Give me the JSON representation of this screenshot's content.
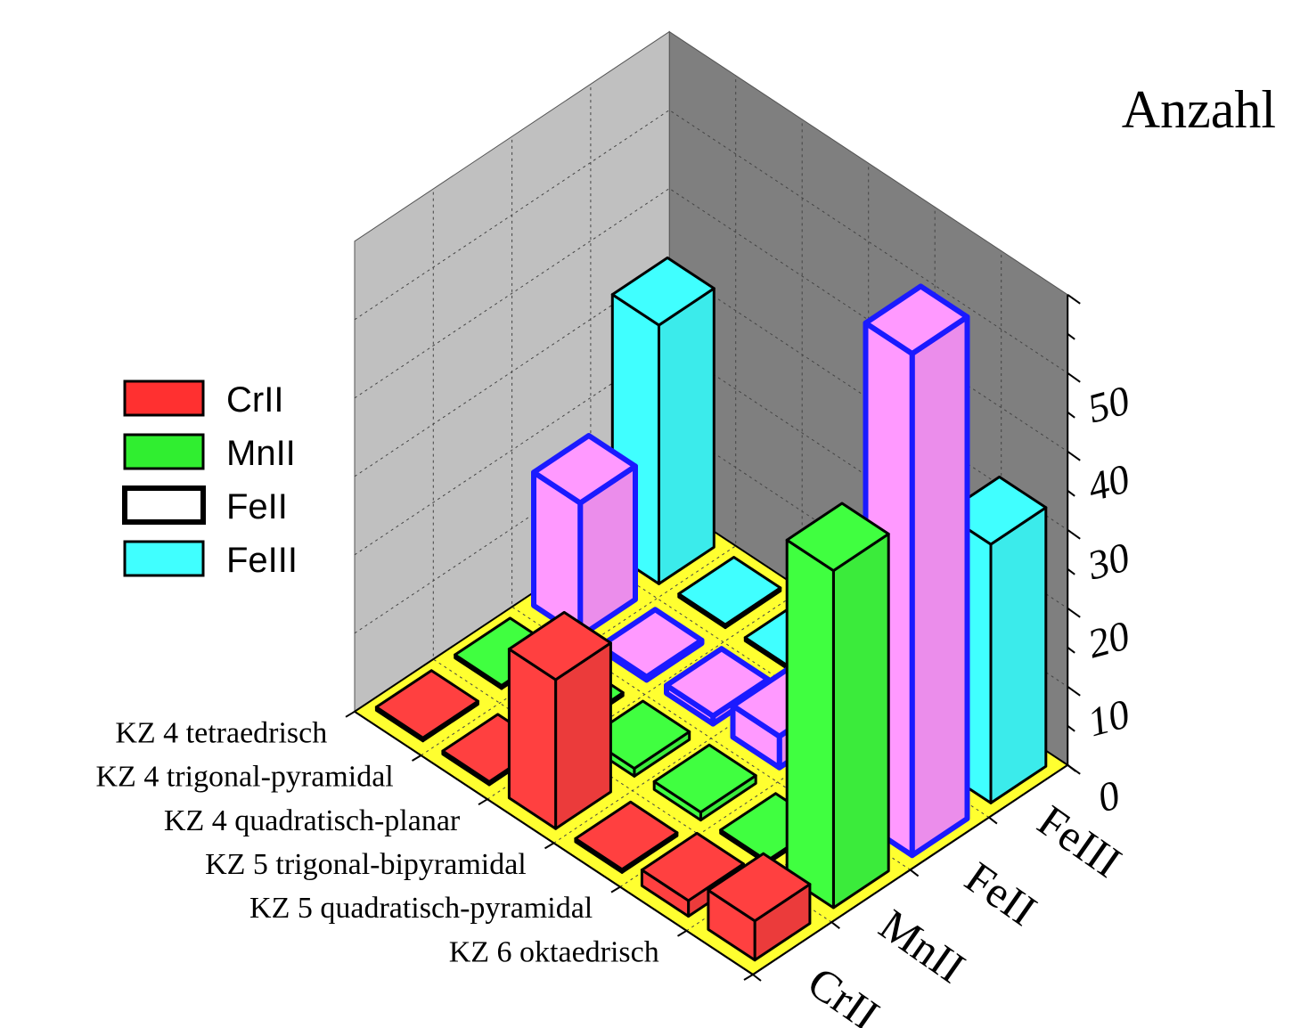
{
  "chart_data": {
    "type": "bar",
    "subtype": "3d-bar",
    "zlabel": "Anzahl",
    "zlim": [
      0,
      60
    ],
    "z_ticks": [
      0,
      10,
      20,
      30,
      40,
      50
    ],
    "grid": true,
    "legend_position": "left",
    "categories": [
      "KZ 6 oktaedrisch",
      "KZ 5 quadratisch-pyramidal",
      "KZ 5 trigonal-bipyramidal",
      "KZ 4 quadratisch-planar",
      "KZ 4 trigonal-pyramidal",
      "KZ 4 tetraedrisch"
    ],
    "series_axis_labels": [
      "CrII",
      "MnII",
      "FeII",
      "FeIII"
    ],
    "series": [
      {
        "name": "CrII",
        "color": "#ff4040",
        "values": [
          5,
          2,
          0,
          19,
          0,
          0
        ]
      },
      {
        "name": "MnII",
        "color": "#40ff40",
        "values": [
          43,
          0,
          1,
          1,
          0,
          0
        ]
      },
      {
        "name": "FeII",
        "color": "#ff99ff",
        "values": [
          64,
          0,
          4,
          1,
          0,
          17
        ]
      },
      {
        "name": "FeIII",
        "color": "#40ffff",
        "values": [
          33,
          0,
          3,
          0,
          0,
          33
        ]
      }
    ],
    "legend": [
      {
        "label": "CrII",
        "color": "#ff3030"
      },
      {
        "label": "MnII",
        "color": "#30ee30"
      },
      {
        "label": "FeII",
        "color": "#ffffff"
      },
      {
        "label": "FeIII",
        "color": "#40ffff"
      }
    ]
  }
}
